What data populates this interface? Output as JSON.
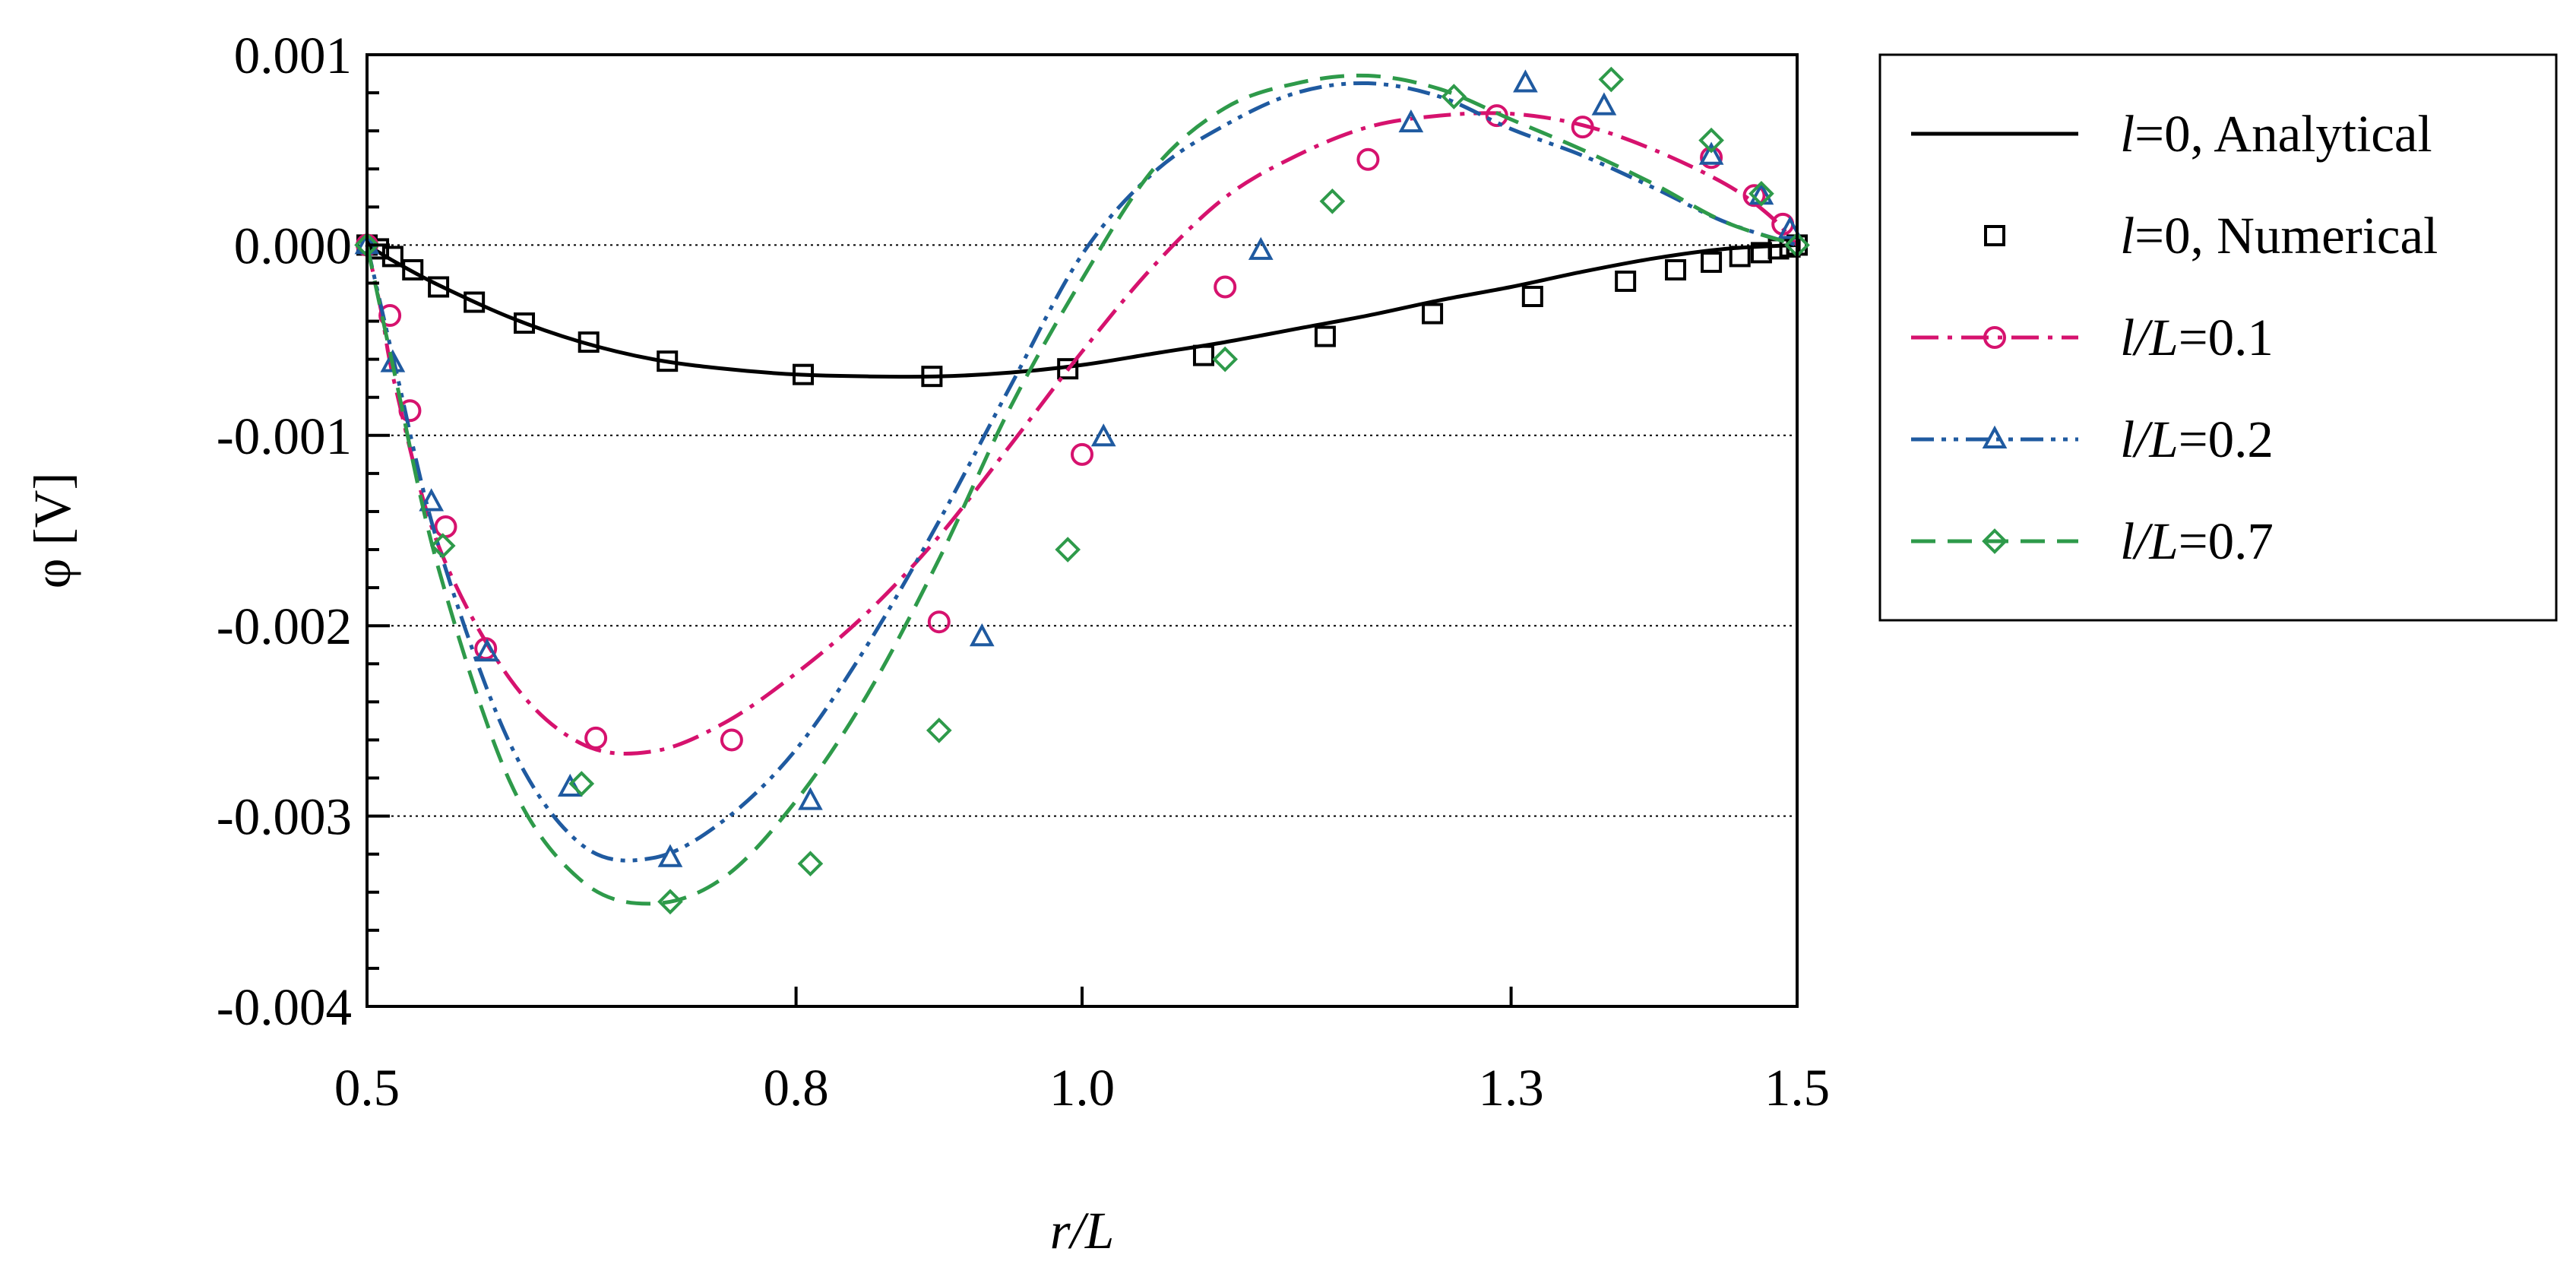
{
  "chart_data": {
    "type": "line",
    "title": "",
    "xlabel": "r/L",
    "ylabel": "φ [V]",
    "xlim": [
      0.5,
      1.5
    ],
    "ylim": [
      -0.004,
      0.001
    ],
    "x_ticks": [
      0.5,
      0.8,
      1.0,
      1.3,
      1.5
    ],
    "x_tick_labels": [
      "0.5",
      "0.8",
      "1.0",
      "1.3",
      "1.5"
    ],
    "y_ticks": [
      0.001,
      0.0,
      -0.001,
      -0.002,
      -0.003,
      -0.004
    ],
    "y_tick_labels": [
      "0.001",
      "0.000",
      "-0.001",
      "-0.002",
      "-0.003",
      "-0.004"
    ],
    "y_gridlines": [
      0.0,
      -0.001,
      -0.002,
      -0.003
    ],
    "legend_position": "outside-right",
    "series": [
      {
        "name": "l=0, Analytical",
        "legend_parts": [
          "l",
          "=0, Analytical"
        ],
        "color": "#000000",
        "line": "solid",
        "marker": "none",
        "x": [
          0.5,
          0.52,
          0.55,
          0.6,
          0.65,
          0.7,
          0.75,
          0.8,
          0.85,
          0.9,
          0.95,
          1.0,
          1.05,
          1.1,
          1.15,
          1.2,
          1.25,
          1.3,
          1.35,
          1.4,
          1.45,
          1.5
        ],
        "y": [
          0.0,
          -9e-05,
          -0.00021,
          -0.00038,
          -0.00051,
          -0.0006,
          -0.00065,
          -0.00068,
          -0.00069,
          -0.00069,
          -0.00067,
          -0.00063,
          -0.00057,
          -0.00051,
          -0.00044,
          -0.00037,
          -0.00029,
          -0.00022,
          -0.00014,
          -7e-05,
          -2e-05,
          0.0
        ]
      },
      {
        "name": "l=0, Numerical",
        "legend_parts": [
          "l",
          "=0, Numerical"
        ],
        "color": "#000000",
        "line": "none",
        "marker": "square",
        "x": [
          0.5,
          0.508,
          0.518,
          0.532,
          0.55,
          0.575,
          0.61,
          0.655,
          0.71,
          0.805,
          0.895,
          0.99,
          1.085,
          1.17,
          1.245,
          1.315,
          1.38,
          1.415,
          1.44,
          1.46,
          1.475,
          1.487,
          1.495,
          1.5
        ],
        "y": [
          0.0,
          -2e-05,
          -6e-05,
          -0.00013,
          -0.00022,
          -0.0003,
          -0.00041,
          -0.00051,
          -0.00061,
          -0.00068,
          -0.00069,
          -0.00065,
          -0.00058,
          -0.00048,
          -0.00036,
          -0.00027,
          -0.00019,
          -0.00013,
          -9e-05,
          -6e-05,
          -4e-05,
          -2e-05,
          -1e-05,
          0.0
        ]
      },
      {
        "name": "l/L=0.1",
        "legend_parts": [
          "l/L",
          "=0.1"
        ],
        "color": "#d6126e",
        "line": "dashdot",
        "marker": "circle",
        "x": [
          0.5,
          0.51,
          0.52,
          0.55,
          0.6,
          0.65,
          0.7,
          0.75,
          0.8,
          0.85,
          0.9,
          0.95,
          1.0,
          1.05,
          1.1,
          1.15,
          1.2,
          1.25,
          1.3,
          1.35,
          1.4,
          1.45,
          1.48,
          1.5
        ],
        "y": [
          0.0,
          -0.00035,
          -0.00075,
          -0.00158,
          -0.00228,
          -0.00262,
          -0.00266,
          -0.00251,
          -0.00225,
          -0.00193,
          -0.00153,
          -0.00105,
          -0.00056,
          -0.00011,
          0.00025,
          0.00047,
          0.00062,
          0.00068,
          0.00069,
          0.00063,
          0.0005,
          0.00032,
          0.00016,
          0.0
        ],
        "marker_x": [
          0.5,
          0.516,
          0.53,
          0.555,
          0.583,
          0.66,
          0.755,
          0.9,
          1.0,
          1.1,
          1.2,
          1.29,
          1.35,
          1.44,
          1.47,
          1.49
        ],
        "marker_y": [
          0.0,
          -0.00037,
          -0.00087,
          -0.00148,
          -0.00212,
          -0.00259,
          -0.0026,
          -0.00198,
          -0.0011,
          -0.00022,
          0.00045,
          0.00068,
          0.00062,
          0.00046,
          0.00026,
          0.00011
        ]
      },
      {
        "name": "l/L=0.2",
        "legend_parts": [
          "l/L",
          "=0.2"
        ],
        "color": "#1f5aa0",
        "line": "dashdotdot",
        "marker": "triangle",
        "x": [
          0.5,
          0.52,
          0.55,
          0.6,
          0.65,
          0.7,
          0.75,
          0.8,
          0.85,
          0.9,
          0.95,
          1.0,
          1.05,
          1.1,
          1.15,
          1.2,
          1.25,
          1.3,
          1.35,
          1.4,
          1.45,
          1.5
        ],
        "y": [
          0.0,
          -0.00065,
          -0.00158,
          -0.00262,
          -0.00315,
          -0.00322,
          -0.00302,
          -0.00265,
          -0.0021,
          -0.00145,
          -0.00074,
          -5e-05,
          0.00038,
          0.00063,
          0.0008,
          0.00085,
          0.00078,
          0.00061,
          0.00047,
          0.0003,
          0.00012,
          0.0
        ],
        "marker_x": [
          0.5,
          0.518,
          0.545,
          0.584,
          0.642,
          0.712,
          0.81,
          0.93,
          1.015,
          1.125,
          1.23,
          1.31,
          1.365,
          1.44,
          1.475,
          1.495
        ],
        "marker_y": [
          0.0,
          -0.00062,
          -0.00135,
          -0.00214,
          -0.00285,
          -0.00322,
          -0.00292,
          -0.00206,
          -0.00101,
          -3e-05,
          0.00064,
          0.00085,
          0.00073,
          0.00047,
          0.00026,
          8e-05
        ]
      },
      {
        "name": "l/L=0.7",
        "legend_parts": [
          "l/L",
          "=0.7"
        ],
        "color": "#2e9a4a",
        "line": "dashed",
        "marker": "diamond",
        "x": [
          0.5,
          0.52,
          0.55,
          0.6,
          0.65,
          0.7,
          0.75,
          0.8,
          0.85,
          0.9,
          0.95,
          1.0,
          1.05,
          1.1,
          1.15,
          1.2,
          1.25,
          1.3,
          1.35,
          1.4,
          1.45,
          1.5
        ],
        "y": [
          0.0,
          -0.0007,
          -0.0017,
          -0.00282,
          -0.00334,
          -0.00346,
          -0.00332,
          -0.00292,
          -0.00236,
          -0.00165,
          -0.00085,
          -0.00018,
          0.0004,
          0.00072,
          0.00085,
          0.00089,
          0.00082,
          0.00066,
          0.0005,
          0.00032,
          0.00012,
          0.0
        ],
        "marker_x": [
          0.5,
          0.553,
          0.65,
          0.712,
          0.81,
          0.9,
          0.99,
          1.1,
          1.175,
          1.26,
          1.37,
          1.44,
          1.475,
          1.5
        ],
        "marker_y": [
          0.0,
          -0.00158,
          -0.00283,
          -0.00345,
          -0.00325,
          -0.00255,
          -0.0016,
          -0.0006,
          0.00023,
          0.00078,
          0.00087,
          0.00055,
          0.00027,
          0.0
        ]
      }
    ]
  }
}
